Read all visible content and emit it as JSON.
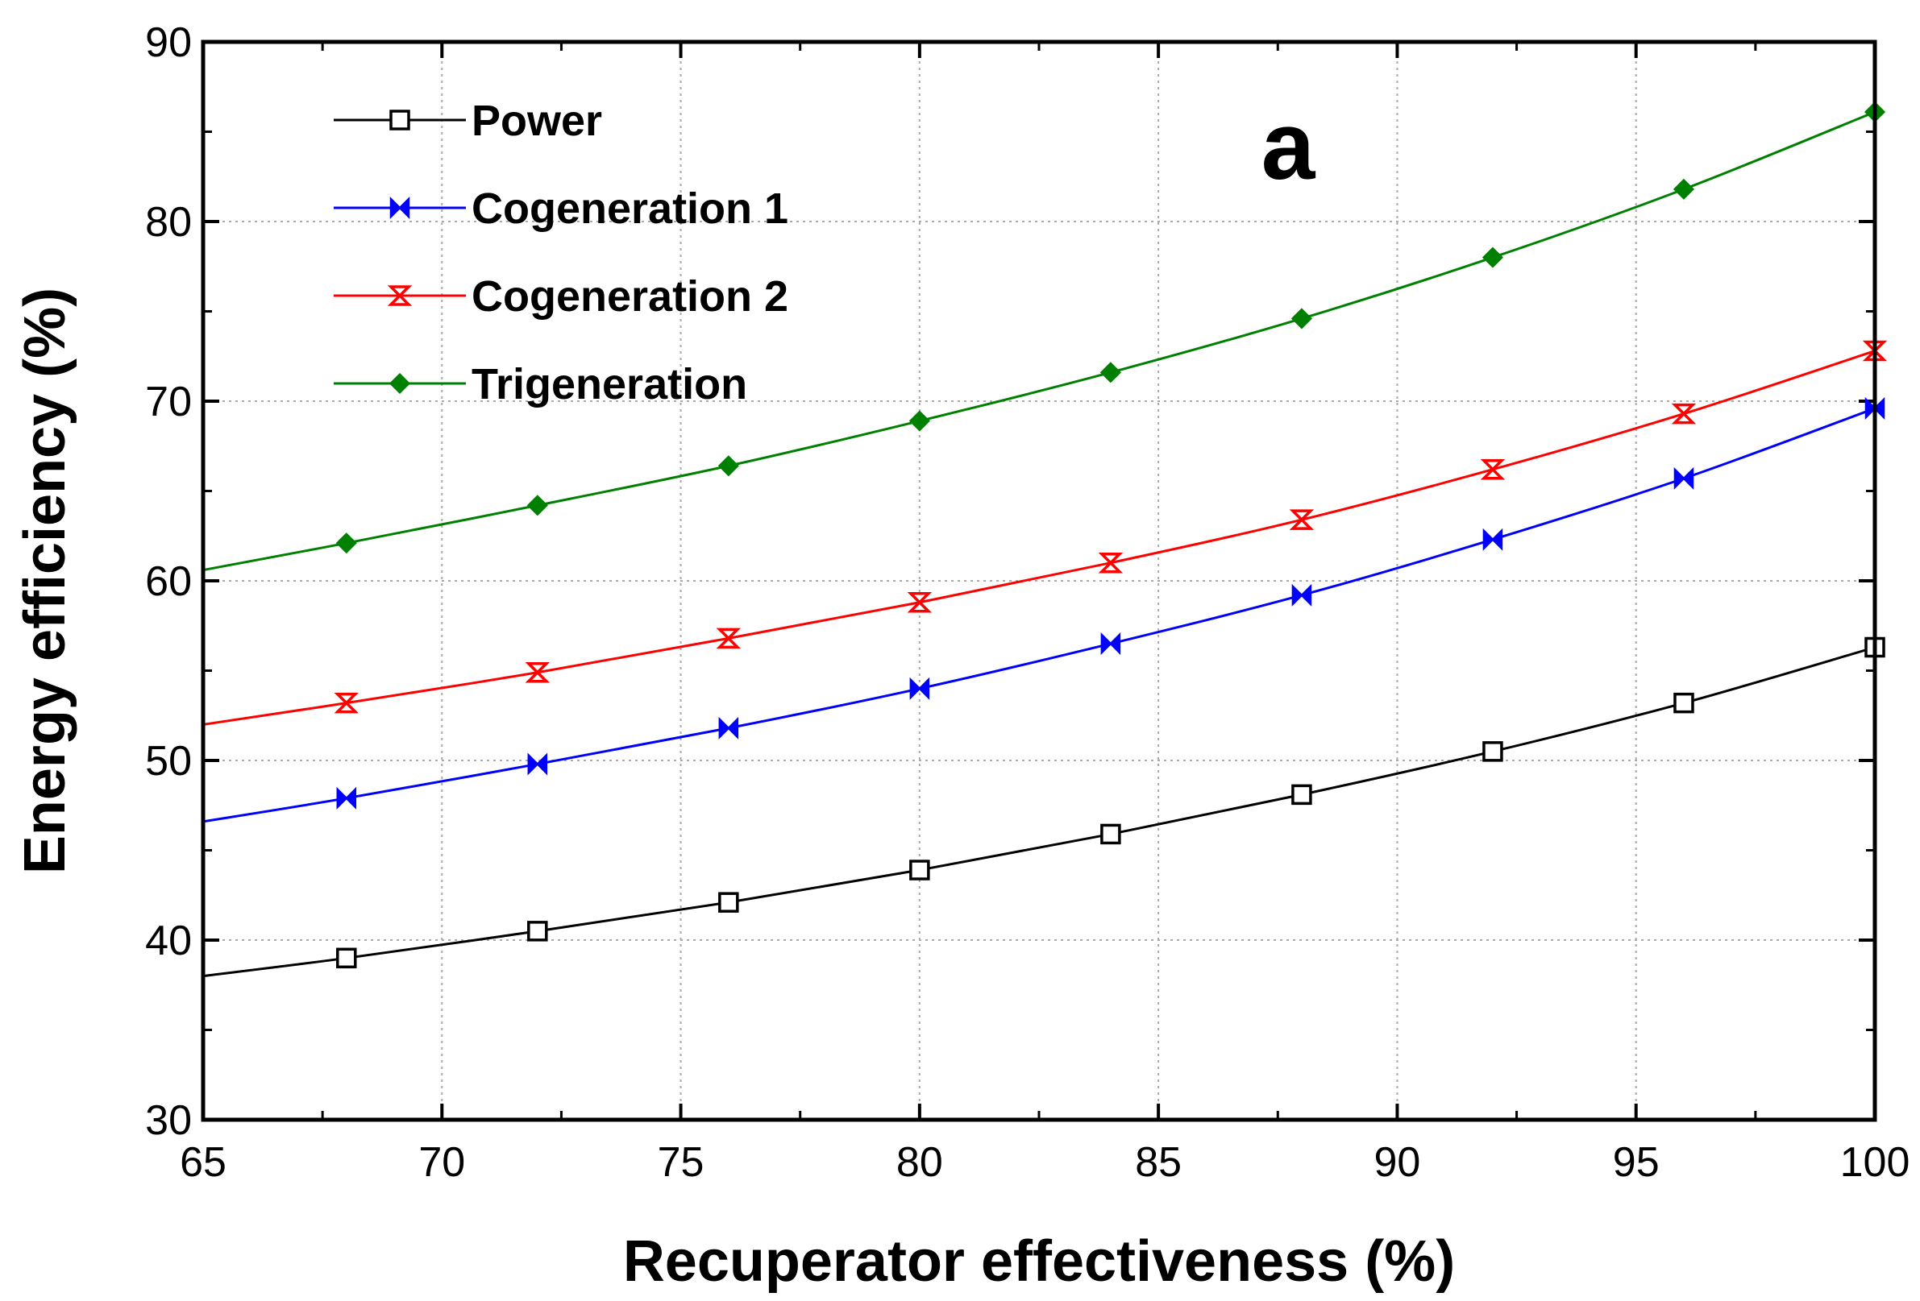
{
  "chart_data": {
    "type": "line",
    "panel_label": "a",
    "xlabel": "Recuperator effectiveness (%)",
    "ylabel": "Energy efficiency (%)",
    "xlim": [
      65,
      100
    ],
    "ylim": [
      30,
      90
    ],
    "x_ticks": [
      65,
      70,
      75,
      80,
      85,
      90,
      95,
      100
    ],
    "y_ticks": [
      30,
      40,
      50,
      60,
      70,
      80,
      90
    ],
    "grid": true,
    "legend_position": "top-left",
    "x": [
      65,
      68,
      72,
      76,
      80,
      84,
      88,
      92,
      96,
      100
    ],
    "marker_x": [
      68,
      72,
      76,
      80,
      84,
      88,
      92,
      96,
      100
    ],
    "series": [
      {
        "name": "Power",
        "color": "#000000",
        "marker": "square-open",
        "values": [
          38.0,
          39.0,
          40.5,
          42.1,
          43.9,
          45.9,
          48.1,
          50.5,
          53.2,
          56.3
        ]
      },
      {
        "name": "Cogeneration 1",
        "color": "#0000ff",
        "marker": "bowtie",
        "values": [
          46.6,
          47.9,
          49.8,
          51.8,
          54.0,
          56.5,
          59.2,
          62.3,
          65.7,
          69.6
        ]
      },
      {
        "name": "Cogeneration 2",
        "color": "#ff0000",
        "marker": "hourglass",
        "values": [
          52.0,
          53.2,
          54.9,
          56.8,
          58.8,
          61.0,
          63.4,
          66.2,
          69.3,
          72.8
        ]
      },
      {
        "name": "Trigeneration",
        "color": "#008000",
        "marker": "diamond-filled",
        "values": [
          60.6,
          62.1,
          64.2,
          66.4,
          68.9,
          71.6,
          74.6,
          78.0,
          81.8,
          86.1
        ]
      }
    ]
  }
}
